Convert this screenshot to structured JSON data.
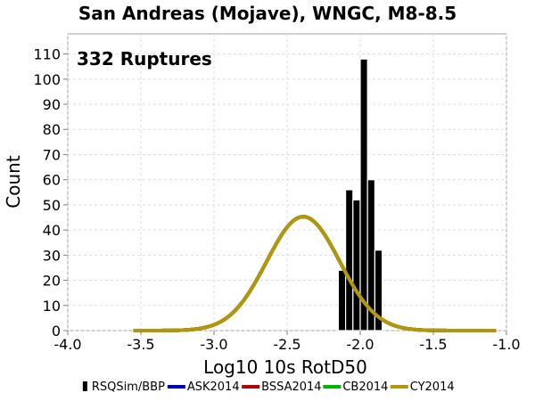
{
  "chart_data": {
    "type": "bar",
    "title": "San Andreas (Mojave), WNGC, M8-8.5",
    "xlabel": "Log10 10s RotD50",
    "ylabel": "Count",
    "annotation": "332 Ruptures",
    "xlim": [
      -4.0,
      -1.0
    ],
    "ylim": [
      0,
      118
    ],
    "x_ticks": [
      -4.0,
      -3.5,
      -3.0,
      -2.5,
      -2.0,
      -1.5,
      -1.0
    ],
    "x_tick_labels": [
      "-4.0",
      "-3.5",
      "-3.0",
      "-2.5",
      "-2.0",
      "-1.5",
      "-1.0"
    ],
    "y_ticks": [
      0,
      10,
      20,
      30,
      40,
      50,
      60,
      70,
      80,
      90,
      100,
      110
    ],
    "y_tick_labels": [
      "0",
      "10",
      "20",
      "30",
      "40",
      "50",
      "60",
      "70",
      "80",
      "90",
      "100",
      "110"
    ],
    "grid": true,
    "legend_position": "bottom",
    "histogram": {
      "name": "RSQSim/BBP",
      "color": "#000000",
      "bin_width": 0.05,
      "bin_centers": [
        -2.225,
        -2.175,
        -2.125,
        -2.075,
        -2.025,
        -1.975,
        -1.925,
        -1.875,
        -1.825,
        -1.775,
        -1.725
      ],
      "values": [
        0,
        0,
        24,
        56,
        52,
        108,
        60,
        32,
        0,
        0,
        0
      ]
    },
    "series": [
      {
        "name": "ASK2014",
        "color": "#0000b4",
        "type": "gaussian",
        "mean": -2.39,
        "sigma": 0.25,
        "peak": 45.3,
        "x_range": [
          -3.55,
          -1.07
        ]
      },
      {
        "name": "BSSA2014",
        "color": "#b40000",
        "type": "gaussian",
        "mean": -2.39,
        "sigma": 0.25,
        "peak": 45.3,
        "x_range": [
          -3.55,
          -1.07
        ]
      },
      {
        "name": "CB2014",
        "color": "#00b400",
        "type": "gaussian",
        "mean": -2.39,
        "sigma": 0.25,
        "peak": 45.3,
        "x_range": [
          -3.55,
          -1.07
        ]
      },
      {
        "name": "CY2014",
        "color": "#b4960a",
        "type": "gaussian",
        "mean": -2.39,
        "sigma": 0.25,
        "peak": 45.3,
        "x_range": [
          -3.55,
          -1.07
        ]
      }
    ]
  }
}
